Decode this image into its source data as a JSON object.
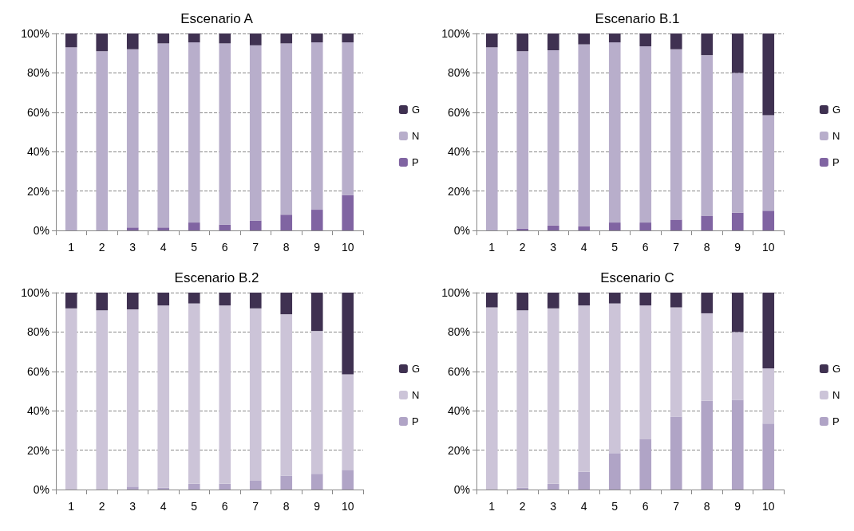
{
  "chart_data": [
    {
      "type": "bar",
      "title": "Escenario A",
      "stacked": true,
      "categories": [
        "1",
        "2",
        "3",
        "4",
        "5",
        "6",
        "7",
        "8",
        "9",
        "10"
      ],
      "ylim": [
        0,
        100
      ],
      "yticks": [
        {
          "value": 0,
          "label": "0%"
        },
        {
          "value": 20,
          "label": "20%"
        },
        {
          "value": 40,
          "label": "40%"
        },
        {
          "value": 60,
          "label": "60%"
        },
        {
          "value": 80,
          "label": "80%"
        },
        {
          "value": 100,
          "label": "100%"
        }
      ],
      "grid": "y",
      "legend": "right",
      "series": [
        {
          "name": "P",
          "color": "#8064a2",
          "values": [
            0,
            0,
            1.5,
            1.5,
            4,
            3,
            5,
            8,
            10.5,
            18
          ]
        },
        {
          "name": "N",
          "color": "#b8aecb",
          "values": [
            93,
            91,
            90.5,
            93.5,
            91.5,
            92,
            89,
            87,
            85,
            77.5
          ]
        },
        {
          "name": "G",
          "color": "#3f3151",
          "values": [
            7,
            9,
            8,
            5,
            4.5,
            5,
            6,
            5,
            4.5,
            4.5
          ]
        }
      ]
    },
    {
      "type": "bar",
      "title": "Escenario B.1",
      "stacked": true,
      "categories": [
        "1",
        "2",
        "3",
        "4",
        "5",
        "6",
        "7",
        "8",
        "9",
        "10"
      ],
      "ylim": [
        0,
        100
      ],
      "yticks": [
        {
          "value": 0,
          "label": "0%"
        },
        {
          "value": 20,
          "label": "20%"
        },
        {
          "value": 40,
          "label": "40%"
        },
        {
          "value": 60,
          "label": "60%"
        },
        {
          "value": 80,
          "label": "80%"
        },
        {
          "value": 100,
          "label": "100%"
        }
      ],
      "grid": "y",
      "legend": "right",
      "series": [
        {
          "name": "P",
          "color": "#8064a2",
          "values": [
            0,
            1,
            2.5,
            2,
            4,
            4,
            5.5,
            7.5,
            9,
            10
          ]
        },
        {
          "name": "N",
          "color": "#b8aecb",
          "values": [
            93,
            90,
            89,
            92.5,
            91.5,
            89.5,
            86.5,
            81.5,
            71,
            48.5
          ]
        },
        {
          "name": "G",
          "color": "#3f3151",
          "values": [
            7,
            9,
            8.5,
            5.5,
            4.5,
            6.5,
            8,
            11,
            20,
            41.5
          ]
        }
      ]
    },
    {
      "type": "bar",
      "title": "Escenario B.2",
      "stacked": true,
      "categories": [
        "1",
        "2",
        "3",
        "4",
        "5",
        "6",
        "7",
        "8",
        "9",
        "10"
      ],
      "ylim": [
        0,
        100
      ],
      "yticks": [
        {
          "value": 0,
          "label": "0%"
        },
        {
          "value": 20,
          "label": "20%"
        },
        {
          "value": 40,
          "label": "40%"
        },
        {
          "value": 60,
          "label": "60%"
        },
        {
          "value": 80,
          "label": "80%"
        },
        {
          "value": 100,
          "label": "100%"
        }
      ],
      "grid": "y",
      "legend": "right",
      "series": [
        {
          "name": "P",
          "color": "#b0a4c6",
          "values": [
            0,
            0,
            1.5,
            1,
            3,
            3,
            4.5,
            7,
            8,
            10
          ]
        },
        {
          "name": "N",
          "color": "#ccc4d8",
          "values": [
            92,
            91,
            90,
            92.5,
            91.5,
            90.5,
            87.5,
            82,
            72.5,
            48.5
          ]
        },
        {
          "name": "G",
          "color": "#3f3151",
          "values": [
            8,
            9,
            8.5,
            6.5,
            5.5,
            6.5,
            8,
            11,
            19.5,
            41.5
          ]
        }
      ]
    },
    {
      "type": "bar",
      "title": "Escenario C",
      "stacked": true,
      "categories": [
        "1",
        "2",
        "3",
        "4",
        "5",
        "6",
        "7",
        "8",
        "9",
        "10"
      ],
      "ylim": [
        0,
        100
      ],
      "yticks": [
        {
          "value": 0,
          "label": "0%"
        },
        {
          "value": 20,
          "label": "20%"
        },
        {
          "value": 40,
          "label": "40%"
        },
        {
          "value": 60,
          "label": "60%"
        },
        {
          "value": 80,
          "label": "80%"
        },
        {
          "value": 100,
          "label": "100%"
        }
      ],
      "grid": "y",
      "legend": "right",
      "series": [
        {
          "name": "P",
          "color": "#b0a4c6",
          "values": [
            0,
            1,
            3,
            9,
            18.5,
            25.5,
            37,
            45,
            45.5,
            33.5
          ]
        },
        {
          "name": "N",
          "color": "#ccc4d8",
          "values": [
            92.5,
            90,
            89,
            84.5,
            76,
            68,
            55.5,
            44.5,
            34.5,
            28
          ]
        },
        {
          "name": "G",
          "color": "#3f3151",
          "values": [
            7.5,
            9,
            8,
            6.5,
            5.5,
            6.5,
            7.5,
            10.5,
            20,
            38.5
          ]
        }
      ]
    }
  ]
}
